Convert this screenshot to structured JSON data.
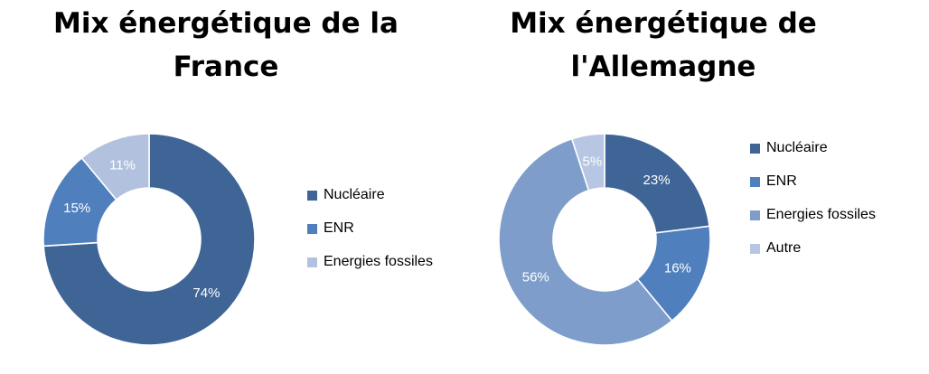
{
  "chart_data": [
    {
      "type": "pie",
      "variant": "donut",
      "title": "Mix énergétique de la France",
      "categories": [
        "Nucléaire",
        "ENR",
        "Energies fossiles"
      ],
      "values": [
        74,
        15,
        11
      ],
      "labels": [
        "74%",
        "15%",
        "11%"
      ],
      "colors": [
        "#3f6597",
        "#4f80bd",
        "#b2c2de"
      ],
      "legend": "right"
    },
    {
      "type": "pie",
      "variant": "donut",
      "title": "Mix énergétique de l'Allemagne",
      "categories": [
        "Nucléaire",
        "ENR",
        "Energies fossiles",
        "Autre"
      ],
      "values": [
        23,
        16,
        56,
        5
      ],
      "labels": [
        "23%",
        "16%",
        "56%",
        "5%"
      ],
      "colors": [
        "#3f6597",
        "#4f80bd",
        "#7e9dcb",
        "#b7c6e2"
      ],
      "legend": "right"
    }
  ]
}
